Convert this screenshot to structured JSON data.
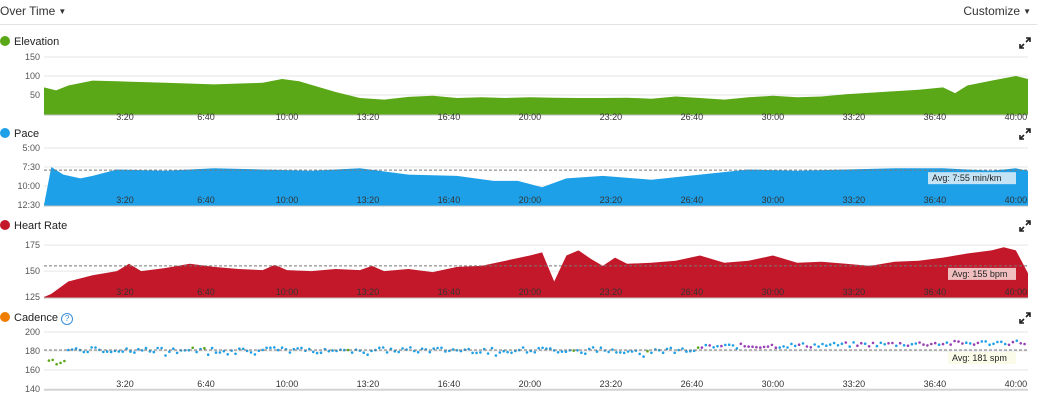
{
  "header": {
    "view_label": "Over Time",
    "customize_label": "Customize"
  },
  "x_ticks": [
    "3:20",
    "6:40",
    "10:00",
    "13:20",
    "16:40",
    "20:00",
    "23:20",
    "26:40",
    "30:00",
    "33:20",
    "36:40",
    "40:00"
  ],
  "chart_data": [
    {
      "type": "area",
      "title": "Elevation",
      "color": "#5aa817",
      "yticks": [
        50,
        100,
        150
      ],
      "ylim": [
        0,
        150
      ],
      "x": [
        0,
        0.5,
        1,
        2,
        3,
        5,
        7,
        9,
        9.8,
        10.5,
        12,
        13,
        14,
        15,
        16,
        17,
        18,
        19,
        20,
        21,
        22,
        23,
        24,
        25,
        26,
        27,
        28,
        29,
        30,
        31,
        32,
        33,
        34,
        35,
        36,
        37,
        37.5,
        38,
        39,
        40,
        40.5
      ],
      "values": [
        70,
        62,
        75,
        88,
        86,
        82,
        78,
        82,
        92,
        86,
        58,
        42,
        38,
        45,
        48,
        42,
        44,
        42,
        44,
        43,
        42,
        42,
        43,
        40,
        46,
        42,
        38,
        44,
        48,
        44,
        46,
        52,
        56,
        60,
        64,
        70,
        55,
        75,
        88,
        100,
        92
      ]
    },
    {
      "type": "area",
      "title": "Pace",
      "color": "#1ea0e8",
      "yticks": [
        "5:00",
        "7:30",
        "10:00",
        "12:30"
      ],
      "ylim_seconds": [
        300,
        750
      ],
      "avg_seconds": 475,
      "avg_label": "Avg: 7:55 min/km",
      "x": [
        0,
        0.3,
        0.8,
        1.5,
        2,
        3,
        5,
        7,
        9,
        11,
        13,
        15,
        17,
        18.5,
        19.5,
        20.5,
        21.5,
        23,
        25,
        27,
        29,
        31,
        33,
        35,
        37,
        39,
        40,
        40.5
      ],
      "values": [
        750,
        450,
        510,
        540,
        520,
        470,
        480,
        460,
        470,
        480,
        460,
        510,
        520,
        560,
        560,
        610,
        540,
        520,
        550,
        510,
        470,
        480,
        470,
        460,
        460,
        480,
        460,
        480
      ]
    },
    {
      "type": "area",
      "title": "Heart Rate",
      "color": "#c2182a",
      "yticks": [
        125,
        150,
        175
      ],
      "ylim": [
        125,
        180
      ],
      "avg": 155,
      "avg_label": "Avg: 155 bpm",
      "x": [
        0,
        0.3,
        1,
        2,
        3,
        3.5,
        4,
        5,
        6,
        7,
        8,
        9,
        9.5,
        10,
        11,
        12,
        13,
        13.5,
        14,
        15,
        16,
        17,
        18,
        19,
        20,
        20.5,
        21,
        21.5,
        22,
        22.5,
        23,
        23.5,
        24,
        25,
        26,
        27,
        28,
        29,
        30,
        31,
        32,
        33,
        34,
        35,
        36,
        37,
        38,
        39,
        39.5,
        40,
        40.5
      ],
      "values": [
        125,
        128,
        140,
        146,
        150,
        157,
        150,
        153,
        157,
        154,
        152,
        151,
        156,
        151,
        150,
        152,
        151,
        155,
        150,
        152,
        149,
        154,
        155,
        160,
        165,
        168,
        140,
        165,
        170,
        162,
        155,
        163,
        157,
        158,
        160,
        165,
        158,
        160,
        165,
        158,
        159,
        157,
        155,
        159,
        160,
        163,
        167,
        170,
        173,
        170,
        148
      ]
    },
    {
      "type": "scatter",
      "title": "Cadence",
      "yticks": [
        140,
        160,
        180,
        200
      ],
      "ylim": [
        140,
        200
      ],
      "avg": 181,
      "avg_label": "Avg: 181 spm",
      "green_color": "#5aa817",
      "blue_color": "#1ea0e8",
      "purple_color": "#9a3fb5"
    }
  ]
}
